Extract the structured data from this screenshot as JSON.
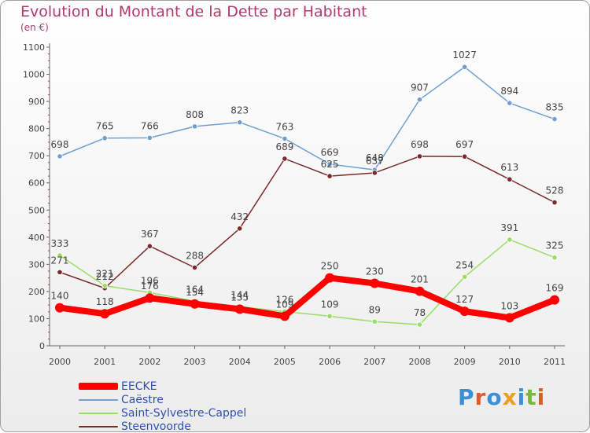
{
  "title": "Evolution du Montant de la Dette par Habitant",
  "unit": "(en €)",
  "logo": {
    "text": "Proxiti",
    "colors": [
      "#3a8fd6",
      "#e05a2a",
      "#3a8fd6",
      "#e8a020",
      "#3a8fd6",
      "#7ab83a",
      "#e05a2a"
    ]
  },
  "chart_data": {
    "type": "line",
    "title": "Evolution du Montant de la Dette par Habitant",
    "ylabel": "(en €)",
    "x": [
      "2000",
      "2001",
      "2002",
      "2003",
      "2004",
      "2005",
      "2006",
      "2007",
      "2008",
      "2009",
      "2010",
      "2011"
    ],
    "ylim": [
      0,
      1100
    ],
    "yticks": [
      0,
      100,
      200,
      300,
      400,
      500,
      600,
      700,
      800,
      900,
      1000,
      1100
    ],
    "grid": false,
    "legend_position": "bottom-left",
    "series": [
      {
        "name": "EECKE",
        "color": "#ff0000",
        "values": [
          140,
          118,
          176,
          154,
          135,
          109,
          250,
          230,
          201,
          127,
          103,
          169
        ]
      },
      {
        "name": "Caëstre",
        "color": "#6fa0d0",
        "values": [
          698,
          765,
          766,
          808,
          823,
          763,
          669,
          648,
          907,
          1027,
          894,
          835
        ]
      },
      {
        "name": "Saint-Sylvestre-Cappel",
        "color": "#99dd66",
        "values": [
          333,
          221,
          196,
          164,
          144,
          126,
          109,
          89,
          78,
          254,
          391,
          325
        ]
      },
      {
        "name": "Steenvoorde",
        "color": "#7a2a2a",
        "values": [
          271,
          212,
          367,
          288,
          432,
          689,
          625,
          637,
          698,
          697,
          613,
          528
        ]
      }
    ]
  }
}
